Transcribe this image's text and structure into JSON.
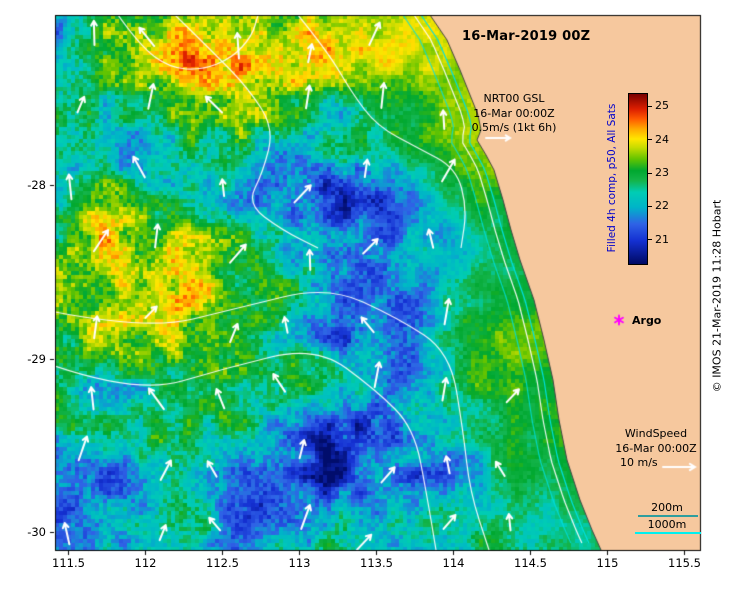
{
  "title": "16-Mar-2019 00Z",
  "gsl_legend": {
    "name": "NRT00 GSL",
    "time": "16-Mar 00:00Z",
    "scale": "0.5m/s (1kt 6h)"
  },
  "wind_legend": {
    "name": "WindSpeed",
    "time": "16-Mar 00:00Z",
    "scale": "10 m/s"
  },
  "argo": {
    "label": "Argo",
    "marker_color": "#ff00ff"
  },
  "bathymetry_legend": {
    "shallow_label": "200m",
    "shallow_color": "#2e9e9e",
    "deep_label": "1000m",
    "deep_color": "#00f0f0"
  },
  "colorbar": {
    "label": "Filled 4h comp, p50, All Sats",
    "label_color": "#0000cc",
    "tick_labels": [
      "25",
      "24",
      "23",
      "22",
      "21"
    ],
    "range_min": 20.3,
    "range_max": 25.4,
    "stops": [
      {
        "v": 20.3,
        "c": "#000a64"
      },
      {
        "v": 21.0,
        "c": "#1430d2"
      },
      {
        "v": 21.5,
        "c": "#2f62e6"
      },
      {
        "v": 22.0,
        "c": "#00b4c8"
      },
      {
        "v": 22.45,
        "c": "#00cdb4"
      },
      {
        "v": 22.8,
        "c": "#14b44a"
      },
      {
        "v": 23.1,
        "c": "#00a830"
      },
      {
        "v": 23.45,
        "c": "#64c400"
      },
      {
        "v": 23.8,
        "c": "#c8dc00"
      },
      {
        "v": 24.05,
        "c": "#ffe600"
      },
      {
        "v": 24.35,
        "c": "#ffaa00"
      },
      {
        "v": 24.65,
        "c": "#ff5a00"
      },
      {
        "v": 24.95,
        "c": "#dc1e00"
      },
      {
        "v": 25.4,
        "c": "#780000"
      }
    ]
  },
  "axes": {
    "x_tick_labels": [
      "111.5",
      "112",
      "112.5",
      "113",
      "113.5",
      "114",
      "114.5",
      "115",
      "115.5"
    ],
    "y_tick_labels": [
      "-28",
      "-29",
      "-30"
    ]
  },
  "copyright": "© IMOS 21-Mar-2019 11:28 Hobart",
  "colors": {
    "land": "#f6c89e",
    "coastline": "#444444",
    "ocean_contour": "#ffffff",
    "vector_arrow": "#ffffff",
    "bathymetry_contour": "#00e0e0",
    "background": "#ffffff"
  }
}
